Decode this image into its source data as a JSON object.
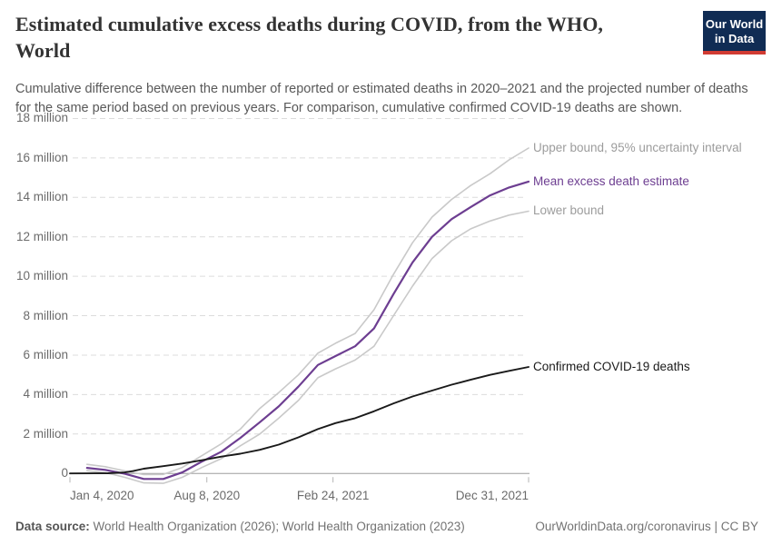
{
  "header": {
    "title": "Estimated cumulative excess deaths during COVID, from the WHO, World",
    "subtitle": "Cumulative difference between the number of reported or estimated deaths in 2020–2021 and the projected number of deaths for the same period based on previous years. For comparison, cumulative confirmed COVID-19 deaths are shown.",
    "logo_line1": "Our World",
    "logo_line2": "in Data",
    "logo_bg_color": "#102c54",
    "logo_accent_color": "#d13b33"
  },
  "chart_data": {
    "type": "line",
    "title": "Estimated cumulative excess deaths during COVID, from the WHO, World",
    "unit": "million deaths",
    "grid": "dashed-horizontal",
    "legend_position": "right-end-labels",
    "x_axis": {
      "kind": "date",
      "range_days": [
        0,
        727
      ],
      "ticks": [
        {
          "day": 0,
          "label": "Jan 4, 2020"
        },
        {
          "day": 217,
          "label": "Aug 8, 2020"
        },
        {
          "day": 417,
          "label": "Feb 24, 2021"
        },
        {
          "day": 727,
          "label": "Dec 31, 2021"
        }
      ]
    },
    "y_axis": {
      "range": [
        -0.7,
        18.3
      ],
      "ticks": [
        {
          "value": 0,
          "label": "0"
        },
        {
          "value": 2,
          "label": "2 million"
        },
        {
          "value": 4,
          "label": "4 million"
        },
        {
          "value": 6,
          "label": "6 million"
        },
        {
          "value": 8,
          "label": "8 million"
        },
        {
          "value": 10,
          "label": "10 million"
        },
        {
          "value": 12,
          "label": "12 million"
        },
        {
          "value": 14,
          "label": "14 million"
        },
        {
          "value": 16,
          "label": "16 million"
        },
        {
          "value": 18,
          "label": "18 million"
        }
      ]
    },
    "series": [
      {
        "id": "upper-bound",
        "name": "Upper bound, 95% uncertainty interval",
        "color": "#c9c9c9",
        "label_color": "#9c9c9c",
        "width": 1.6,
        "points": [
          [
            27,
            0.46
          ],
          [
            56,
            0.34
          ],
          [
            87,
            0.13
          ],
          [
            117,
            -0.06
          ],
          [
            148,
            -0.05
          ],
          [
            178,
            0.3
          ],
          [
            209,
            0.9
          ],
          [
            240,
            1.5
          ],
          [
            270,
            2.25
          ],
          [
            301,
            3.3
          ],
          [
            331,
            4.1
          ],
          [
            362,
            5.0
          ],
          [
            393,
            6.1
          ],
          [
            421,
            6.6
          ],
          [
            452,
            7.1
          ],
          [
            482,
            8.3
          ],
          [
            513,
            10.1
          ],
          [
            543,
            11.7
          ],
          [
            574,
            13.0
          ],
          [
            605,
            13.9
          ],
          [
            635,
            14.6
          ],
          [
            666,
            15.2
          ],
          [
            696,
            15.9
          ],
          [
            727,
            16.5
          ]
        ]
      },
      {
        "id": "lower-bound",
        "name": "Lower bound",
        "color": "#c9c9c9",
        "label_color": "#9c9c9c",
        "width": 1.6,
        "points": [
          [
            27,
            0.14
          ],
          [
            56,
            0.04
          ],
          [
            87,
            -0.2
          ],
          [
            117,
            -0.48
          ],
          [
            148,
            -0.5
          ],
          [
            178,
            -0.2
          ],
          [
            209,
            0.3
          ],
          [
            240,
            0.75
          ],
          [
            270,
            1.4
          ],
          [
            301,
            2.0
          ],
          [
            331,
            2.8
          ],
          [
            362,
            3.7
          ],
          [
            393,
            4.85
          ],
          [
            421,
            5.3
          ],
          [
            452,
            5.75
          ],
          [
            482,
            6.45
          ],
          [
            513,
            8.0
          ],
          [
            543,
            9.5
          ],
          [
            574,
            10.9
          ],
          [
            605,
            11.8
          ],
          [
            635,
            12.4
          ],
          [
            666,
            12.8
          ],
          [
            696,
            13.1
          ],
          [
            727,
            13.3
          ]
        ]
      },
      {
        "id": "mean-excess-deaths",
        "name": "Mean excess death estimate",
        "color": "#6d3e91",
        "label_color": "#6d3e91",
        "width": 2.2,
        "points": [
          [
            27,
            0.28
          ],
          [
            56,
            0.18
          ],
          [
            87,
            -0.02
          ],
          [
            117,
            -0.28
          ],
          [
            148,
            -0.28
          ],
          [
            178,
            0.05
          ],
          [
            209,
            0.6
          ],
          [
            240,
            1.1
          ],
          [
            270,
            1.8
          ],
          [
            301,
            2.6
          ],
          [
            331,
            3.4
          ],
          [
            362,
            4.4
          ],
          [
            393,
            5.5
          ],
          [
            421,
            5.95
          ],
          [
            452,
            6.45
          ],
          [
            482,
            7.35
          ],
          [
            513,
            9.1
          ],
          [
            543,
            10.7
          ],
          [
            574,
            12.0
          ],
          [
            605,
            12.9
          ],
          [
            635,
            13.5
          ],
          [
            666,
            14.1
          ],
          [
            696,
            14.5
          ],
          [
            727,
            14.8
          ]
        ]
      },
      {
        "id": "confirmed-covid-deaths",
        "name": "Confirmed COVID-19 deaths",
        "color": "#1a1a1a",
        "label_color": "#1a1a1a",
        "width": 1.9,
        "points": [
          [
            0,
            0.0
          ],
          [
            40,
            0.005
          ],
          [
            60,
            0.01
          ],
          [
            87,
            0.05
          ],
          [
            100,
            0.12
          ],
          [
            117,
            0.24
          ],
          [
            148,
            0.37
          ],
          [
            178,
            0.5
          ],
          [
            209,
            0.67
          ],
          [
            240,
            0.85
          ],
          [
            270,
            1.0
          ],
          [
            301,
            1.2
          ],
          [
            331,
            1.46
          ],
          [
            362,
            1.83
          ],
          [
            393,
            2.25
          ],
          [
            421,
            2.55
          ],
          [
            452,
            2.8
          ],
          [
            482,
            3.15
          ],
          [
            513,
            3.55
          ],
          [
            543,
            3.9
          ],
          [
            574,
            4.2
          ],
          [
            605,
            4.5
          ],
          [
            635,
            4.75
          ],
          [
            666,
            5.0
          ],
          [
            696,
            5.2
          ],
          [
            727,
            5.4
          ]
        ]
      }
    ],
    "colors": {
      "gridline": "#dcdcdc",
      "zero_line": "#9e9e9e",
      "tick_mark": "#b5b5b5"
    }
  },
  "footer": {
    "datasource_label": "Data source:",
    "datasource_text": "World Health Organization (2026); World Health Organization (2023)",
    "credit": "OurWorldinData.org/coronavirus | CC BY"
  }
}
